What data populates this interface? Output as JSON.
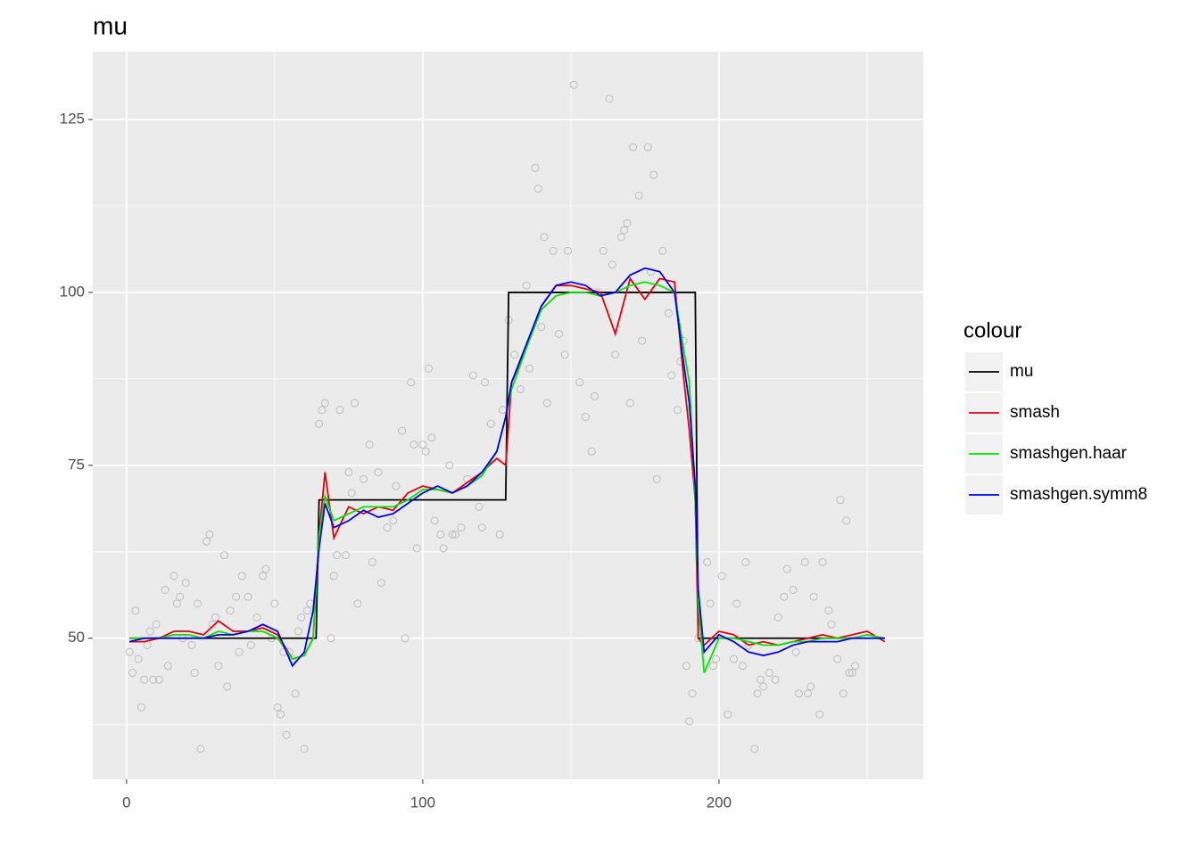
{
  "chart_data": {
    "type": "line",
    "title": "mu",
    "legend_title": "colour",
    "legend": "right",
    "grid": true,
    "xlim": [
      -11.4,
      269
    ],
    "xticks": [
      0,
      100,
      200
    ],
    "xminor": [
      50,
      150,
      250
    ],
    "ylim": [
      29.6,
      134.8
    ],
    "yticks": [
      50,
      75,
      100,
      125
    ],
    "yminor": [
      37.5,
      62.5,
      87.5,
      112.5
    ],
    "series": [
      {
        "name": "mu",
        "color": "#000000",
        "x": [
          1,
          64,
          65,
          128,
          129,
          192,
          193,
          256
        ],
        "values": [
          50,
          50,
          70,
          70,
          100,
          100,
          50,
          50
        ]
      },
      {
        "name": "smash",
        "color": "#e8000b",
        "x": [
          1,
          6,
          11,
          16,
          21,
          26,
          31,
          36,
          41,
          46,
          51,
          56,
          60,
          63,
          65,
          67,
          70,
          75,
          80,
          85,
          90,
          95,
          100,
          105,
          110,
          115,
          120,
          125,
          128,
          130,
          135,
          140,
          145,
          150,
          155,
          160,
          165,
          170,
          175,
          180,
          185,
          188,
          190,
          192,
          193,
          195,
          200,
          205,
          210,
          215,
          220,
          225,
          230,
          235,
          240,
          245,
          250,
          256
        ],
        "values": [
          49.5,
          49.5,
          50,
          51,
          51,
          50.5,
          52.5,
          51,
          51,
          51.5,
          50.5,
          47,
          47.5,
          50,
          65,
          74,
          64.5,
          69,
          68,
          69,
          68.5,
          71,
          72,
          71.5,
          71,
          72.5,
          74,
          76,
          75,
          87,
          92,
          98,
          101,
          101,
          100.5,
          100,
          94,
          102,
          99,
          102,
          101.5,
          88,
          80,
          70,
          50,
          49,
          51,
          50.5,
          49,
          49.5,
          49,
          49.5,
          50,
          50.5,
          50,
          50.5,
          51,
          49.5
        ]
      },
      {
        "name": "smashgen.haar",
        "color": "#00e600",
        "x": [
          1,
          6,
          11,
          16,
          21,
          26,
          31,
          36,
          41,
          46,
          51,
          56,
          60,
          63,
          65,
          67,
          70,
          75,
          80,
          85,
          90,
          95,
          100,
          105,
          110,
          115,
          120,
          125,
          128,
          130,
          135,
          140,
          145,
          150,
          155,
          160,
          165,
          170,
          175,
          180,
          185,
          188,
          190,
          192,
          193,
          195,
          200,
          205,
          210,
          215,
          220,
          225,
          230,
          235,
          240,
          245,
          250,
          256
        ],
        "values": [
          50,
          50,
          50,
          50.5,
          50.5,
          50,
          51,
          50.5,
          51,
          51,
          50,
          47,
          47.5,
          50,
          65,
          70.5,
          67,
          68,
          69,
          69,
          69,
          70,
          71.5,
          71.5,
          71,
          72,
          73.5,
          77,
          82,
          86,
          92,
          97.5,
          99.5,
          100,
          100,
          99.5,
          100,
          101,
          101.5,
          101,
          100,
          92,
          87,
          70,
          55,
          45,
          50,
          50,
          49.5,
          49,
          49,
          49.5,
          49.5,
          50,
          50,
          50,
          50.5,
          50
        ]
      },
      {
        "name": "smashgen.symm8",
        "color": "#0000f0",
        "x": [
          1,
          6,
          11,
          16,
          21,
          26,
          31,
          36,
          41,
          46,
          51,
          56,
          60,
          63,
          65,
          67,
          70,
          75,
          80,
          85,
          90,
          95,
          100,
          105,
          110,
          115,
          120,
          125,
          128,
          130,
          135,
          140,
          145,
          150,
          155,
          160,
          165,
          170,
          175,
          180,
          185,
          188,
          190,
          192,
          193,
          195,
          200,
          205,
          210,
          215,
          220,
          225,
          230,
          235,
          240,
          245,
          250,
          256
        ],
        "values": [
          49.5,
          50,
          50,
          50,
          50,
          50,
          50.5,
          50.5,
          51,
          52,
          51,
          46,
          48,
          54,
          63,
          69.5,
          66,
          67,
          68.5,
          67.5,
          68,
          69.5,
          71,
          72,
          71,
          72,
          74,
          77,
          82,
          87,
          92.5,
          98,
          101,
          101.5,
          101,
          99.5,
          100,
          102.5,
          103.5,
          103,
          100,
          90,
          84,
          72,
          57,
          48,
          50.5,
          49.5,
          48,
          47.5,
          48,
          49,
          49.5,
          49.5,
          49.5,
          50,
          50,
          50
        ]
      }
    ],
    "points": {
      "color": "#bdbdbd",
      "x": [
        1,
        2,
        3,
        4,
        5,
        6,
        7,
        8,
        9,
        10,
        11,
        13,
        14,
        16,
        17,
        18,
        19,
        20,
        22,
        23,
        24,
        25,
        27,
        28,
        29,
        30,
        31,
        33,
        34,
        35,
        37,
        38,
        39,
        41,
        42,
        44,
        46,
        47,
        49,
        50,
        51,
        52,
        53,
        54,
        55,
        56,
        57,
        58,
        59,
        60,
        61,
        62,
        65,
        66,
        67,
        69,
        70,
        71,
        72,
        74,
        75,
        76,
        77,
        78,
        80,
        82,
        83,
        85,
        86,
        88,
        90,
        91,
        93,
        94,
        96,
        97,
        98,
        100,
        101,
        102,
        103,
        104,
        106,
        107,
        109,
        110,
        111,
        113,
        115,
        117,
        119,
        120,
        121,
        123,
        126,
        127,
        129,
        131,
        133,
        135,
        136,
        138,
        139,
        140,
        141,
        142,
        144,
        146,
        148,
        149,
        151,
        153,
        155,
        157,
        158,
        159,
        161,
        163,
        164,
        165,
        167,
        168,
        169,
        170,
        171,
        173,
        174,
        176,
        177,
        178,
        179,
        181,
        183,
        184,
        186,
        187,
        188,
        189,
        190,
        191,
        193,
        196,
        197,
        198,
        199,
        201,
        203,
        205,
        206,
        208,
        209,
        210,
        212,
        213,
        214,
        215,
        217,
        219,
        220,
        222,
        223,
        225,
        226,
        227,
        229,
        230,
        231,
        232,
        234,
        235,
        237,
        238,
        240,
        241,
        242,
        243,
        244,
        245,
        246
      ],
      "y": [
        48,
        45,
        54,
        47,
        40,
        44,
        49,
        51,
        44,
        52,
        44,
        57,
        46,
        59,
        55,
        56,
        50,
        58,
        49,
        45,
        55,
        34,
        64,
        65,
        52,
        53,
        46,
        62,
        43,
        54,
        56,
        48,
        59,
        56,
        49,
        53,
        59,
        60,
        50,
        55,
        40,
        39,
        48,
        36,
        48,
        47,
        42,
        51,
        53,
        34,
        54,
        55,
        81,
        83,
        84,
        50,
        59,
        62,
        83,
        62,
        74,
        71,
        84,
        55,
        73,
        78,
        61,
        74,
        58,
        66,
        67,
        72,
        80,
        50,
        87,
        78,
        63,
        78,
        77,
        89,
        79,
        67,
        65,
        63,
        75,
        65,
        65,
        66,
        73,
        88,
        69,
        66,
        87,
        81,
        65,
        83,
        96,
        91,
        86,
        101,
        89,
        118,
        115,
        95,
        108,
        84,
        106,
        94,
        91,
        106,
        130,
        87,
        82,
        77,
        85,
        100,
        106,
        128,
        104,
        91,
        108,
        109,
        110,
        84,
        121,
        114,
        93,
        121,
        103,
        117,
        73,
        106,
        97,
        88,
        83,
        90,
        93,
        46,
        38,
        42,
        50,
        61,
        55,
        46,
        47,
        59,
        39,
        47,
        55,
        46,
        61,
        49,
        34,
        42,
        44,
        43,
        45,
        44,
        53,
        56,
        60,
        57,
        48,
        42,
        61,
        42,
        43,
        56,
        39,
        61,
        54,
        52,
        47,
        70,
        42,
        67,
        45,
        45,
        46
      ]
    }
  }
}
